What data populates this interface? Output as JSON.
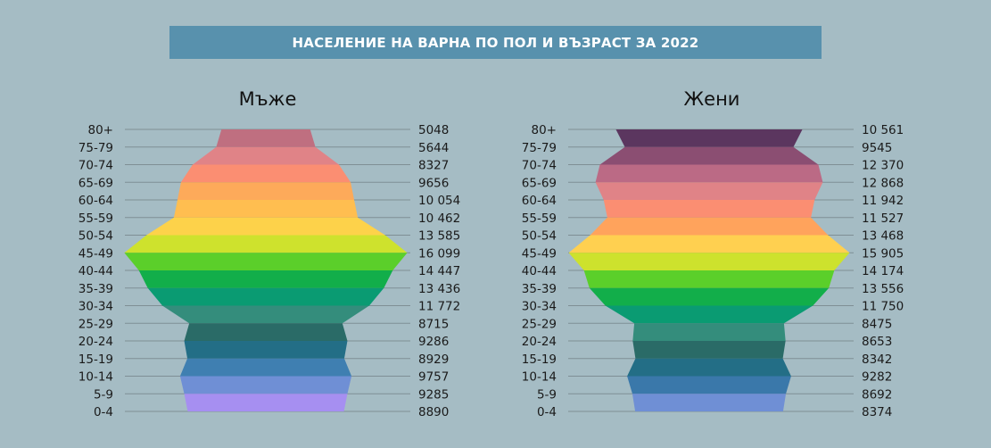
{
  "title": "НАСЕЛЕНИЕ НА ВАРНА ПО ПОЛ И ВЪЗРАСТ ЗА 2022",
  "chart_data": [
    {
      "type": "bar",
      "title": "Мъже",
      "categories": [
        "80+",
        "75-79",
        "70-74",
        "65-69",
        "60-64",
        "55-59",
        "50-54",
        "45-49",
        "40-44",
        "35-39",
        "30-34",
        "25-29",
        "20-24",
        "15-19",
        "10-14",
        "5-9",
        "0-4"
      ],
      "values": [
        5048,
        5644,
        8327,
        9656,
        10054,
        10462,
        13585,
        16099,
        14447,
        13436,
        11772,
        8715,
        9286,
        8929,
        9757,
        9285,
        8890
      ],
      "value_labels": [
        "5048",
        "5644",
        "8327",
        "9656",
        "10 054",
        "10 462",
        "13 585",
        "16 099",
        "14 447",
        "13 436",
        "11 772",
        "8715",
        "9286",
        "8929",
        "9757",
        "9285",
        "8890"
      ],
      "colors": [
        "#bf6f80",
        "#e08387",
        "#fb8e72",
        "#fdaa5a",
        "#ffbe50",
        "#fdd24a",
        "#cee22d",
        "#5bcf2a",
        "#12ae4a",
        "#0a9b72",
        "#348d7c",
        "#2a6b67",
        "#236e86",
        "#3f7fb1",
        "#6f8fd5",
        "#a68ff1",
        "#e59af7"
      ]
    },
    {
      "type": "bar",
      "title": "Жени",
      "categories": [
        "80+",
        "75-79",
        "70-74",
        "65-69",
        "60-64",
        "55-59",
        "50-54",
        "45-49",
        "40-44",
        "35-39",
        "30-34",
        "25-29",
        "20-24",
        "15-19",
        "10-14",
        "5-9",
        "0-4"
      ],
      "values": [
        10561,
        9545,
        12370,
        12868,
        11942,
        11527,
        13468,
        15905,
        14174,
        13556,
        11750,
        8475,
        8653,
        8342,
        9282,
        8692,
        8374
      ],
      "value_labels": [
        "10 561",
        "9545",
        "12 370",
        "12 868",
        "11 942",
        "11 527",
        "13 468",
        "15 905",
        "14 174",
        "13 556",
        "11 750",
        "8475",
        "8653",
        "8342",
        "9282",
        "8692",
        "8374"
      ],
      "colors": [
        "#5b365f",
        "#8b4e72",
        "#bb6a85",
        "#e08387",
        "#fb8e72",
        "#ffa35c",
        "#ffd050",
        "#cde22d",
        "#5bcf2a",
        "#12ae4a",
        "#0a9b72",
        "#348d7c",
        "#2a6b67",
        "#236e86",
        "#3a78aa",
        "#6f8fd5",
        "#a68ff1"
      ]
    }
  ]
}
